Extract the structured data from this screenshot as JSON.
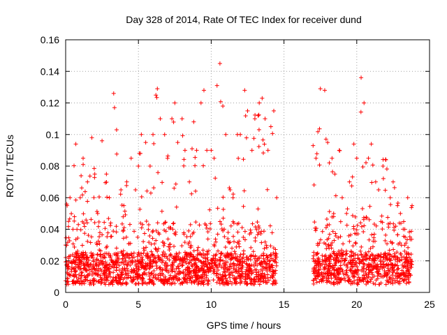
{
  "chart_data": {
    "type": "scatter",
    "title": "Day 328 of 2014, Rate Of TEC Index for receiver dund",
    "xlabel": "GPS time / hours",
    "ylabel": "ROTI / TECUs",
    "xlim": [
      0,
      25
    ],
    "ylim": [
      0,
      0.16
    ],
    "xticks": [
      0,
      5,
      10,
      15,
      20,
      25
    ],
    "yticks": [
      0,
      0.02,
      0.04,
      0.06,
      0.08,
      0.1,
      0.12,
      0.14,
      0.16
    ],
    "ytick_labels": [
      "0",
      "0.02",
      "0.04",
      "0.06",
      "0.08",
      "0.1",
      "0.12",
      "0.14",
      "0.16"
    ],
    "grid": true,
    "marker": "+",
    "marker_color": "#ff0000",
    "data_gap_hours": [
      14.5,
      17.0
    ],
    "series": [
      {
        "x": [
          0.0,
          0.1,
          0.2,
          0.3,
          0.5,
          0.7,
          1.0,
          1.2,
          1.5,
          1.8,
          2.0,
          2.2,
          2.5,
          2.8,
          3.0,
          3.3,
          3.5,
          3.8,
          4.0,
          4.2,
          4.5,
          4.8,
          5.0,
          5.2,
          5.5,
          5.8,
          6.0,
          6.2,
          6.3,
          6.5,
          6.8,
          7.0,
          7.3,
          7.5,
          7.7,
          8.0,
          8.2,
          8.5,
          8.8,
          9.0,
          9.3,
          9.5,
          9.7,
          10.0,
          10.2,
          10.4,
          10.6,
          10.8,
          11.0,
          11.3,
          11.5,
          11.8,
          12.0,
          12.3,
          12.5,
          12.8,
          13.0,
          13.3,
          13.5,
          13.7,
          13.9,
          14.1,
          14.3,
          14.5,
          17.0,
          17.2,
          17.5,
          17.8,
          18.0,
          18.3,
          18.5,
          18.8,
          19.0,
          19.3,
          19.5,
          19.8,
          20.0,
          20.3,
          20.5,
          20.8,
          21.0,
          21.3,
          21.5,
          21.8,
          22.0,
          22.3,
          22.5,
          22.8,
          23.0,
          23.3,
          23.5,
          23.8
        ],
        "y": [
          0.03,
          0.055,
          0.045,
          0.06,
          0.04,
          0.094,
          0.06,
          0.085,
          0.07,
          0.098,
          0.075,
          0.05,
          0.096,
          0.075,
          0.06,
          0.126,
          0.103,
          0.065,
          0.055,
          0.07,
          0.085,
          0.065,
          0.08,
          0.1,
          0.095,
          0.08,
          0.1,
          0.125,
          0.129,
          0.11,
          0.1,
          0.085,
          0.11,
          0.12,
          0.095,
          0.11,
          0.09,
          0.07,
          0.108,
          0.09,
          0.12,
          0.128,
          0.09,
          0.09,
          0.085,
          0.131,
          0.145,
          0.118,
          0.1,
          0.065,
          0.06,
          0.1,
          0.1,
          0.128,
          0.115,
          0.09,
          0.11,
          0.12,
          0.123,
          0.11,
          0.09,
          0.105,
          0.115,
          0.06,
          0.093,
          0.085,
          0.129,
          0.128,
          0.095,
          0.085,
          0.075,
          0.09,
          0.06,
          0.05,
          0.07,
          0.094,
          0.085,
          0.136,
          0.12,
          0.085,
          0.094,
          0.07,
          0.065,
          0.08,
          0.084,
          0.06,
          0.07,
          0.055,
          0.05,
          0.04,
          0.06,
          0.055
        ],
        "baseline_band": [
          0.005,
          0.025
        ]
      }
    ]
  }
}
